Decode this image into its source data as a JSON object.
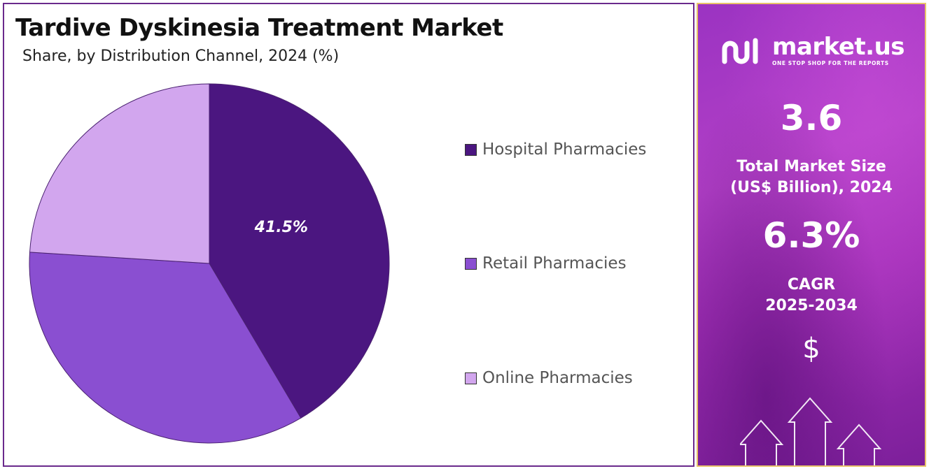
{
  "title": "Tardive Dyskinesia Treatment Market",
  "subtitle": "Share, by Distribution Channel, 2024 (%)",
  "chart_data": {
    "type": "pie",
    "title": "Tardive Dyskinesia Treatment Market",
    "subtitle": "Share, by Distribution Channel, 2024 (%)",
    "categories": [
      "Hospital Pharmacies",
      "Retail Pharmacies",
      "Online Pharmacies"
    ],
    "values": [
      41.5,
      34.5,
      24.0
    ],
    "colors": [
      "#4b1680",
      "#8a4fd1",
      "#d2a6ee"
    ],
    "data_labels": [
      "41.5%",
      "",
      ""
    ],
    "start_angle_deg": 0,
    "direction": "clockwise",
    "legend_position": "right"
  },
  "side_panel": {
    "brand_name": "market.us",
    "brand_tagline": "ONE STOP SHOP FOR THE REPORTS",
    "market_size_value": "3.6",
    "market_size_label_line1": "Total Market Size",
    "market_size_label_line2": "(US$ Billion), 2024",
    "cagr_value": "6.3%",
    "cagr_label_line1": "CAGR",
    "cagr_label_line2": "2025-2034",
    "currency_symbol": "$",
    "icons": [
      "market-us-logo-icon",
      "growth-arrows-icon"
    ]
  }
}
